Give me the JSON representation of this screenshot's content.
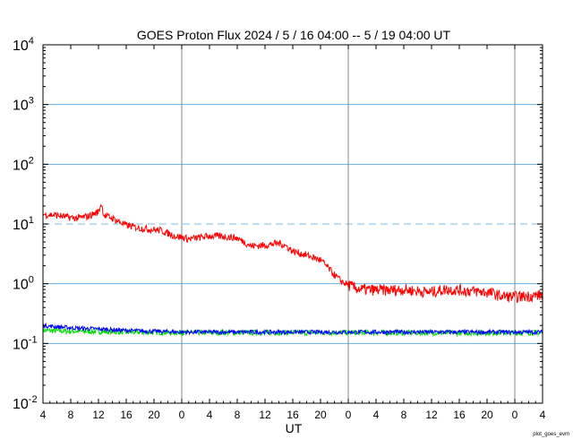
{
  "chart_data": {
    "type": "line",
    "title": "GOES Proton Flux   2024  /  5  / 16   04:00  --   5  / 19   04:00    UT",
    "xlabel": "UT",
    "credit": "plot_goes_evm",
    "y_scale": "log",
    "ylim": [
      0.01,
      10000
    ],
    "y_ticks": [
      {
        "base": "10",
        "exp": "-2"
      },
      {
        "base": "10",
        "exp": "-1"
      },
      {
        "base": "10",
        "exp": "0"
      },
      {
        "base": "10",
        "exp": "1"
      },
      {
        "base": "10",
        "exp": "2"
      },
      {
        "base": "10",
        "exp": "3"
      },
      {
        "base": "10",
        "exp": "4"
      }
    ],
    "x_range_hours": [
      0,
      72
    ],
    "x_tick_labels": [
      "4",
      "8",
      "12",
      "16",
      "20",
      "0",
      "4",
      "8",
      "12",
      "16",
      "20",
      "0",
      "4",
      "8",
      "12",
      "16",
      "20",
      "0",
      "4"
    ],
    "day_boundaries_hours": [
      20,
      44,
      68
    ],
    "grid_levels": [
      0.1,
      1,
      100,
      1000
    ],
    "threshold": 10,
    "colors": {
      "grid": "#6aaee0",
      "threshold": "#a8d4f0",
      "day_line": "#888888",
      "series_red": "#ff0000",
      "series_blue": "#0000ff",
      "series_green": "#00e000"
    },
    "series": [
      {
        "color": "#ff0000",
        "points": [
          [
            0,
            14.5
          ],
          [
            2,
            14.0
          ],
          [
            3.5,
            13.0
          ],
          [
            5,
            12.5
          ],
          [
            6.5,
            13.5
          ],
          [
            8,
            16
          ],
          [
            8.4,
            22
          ],
          [
            8.8,
            14
          ],
          [
            10,
            12.5
          ],
          [
            12,
            9.5
          ],
          [
            14,
            8.5
          ],
          [
            16,
            8.0
          ],
          [
            17,
            7.8
          ],
          [
            18,
            7.0
          ],
          [
            19,
            6.3
          ],
          [
            20,
            6.0
          ],
          [
            21,
            5.6
          ],
          [
            22,
            5.8
          ],
          [
            24,
            6.3
          ],
          [
            26,
            6.2
          ],
          [
            28,
            5.8
          ],
          [
            29,
            5.0
          ],
          [
            30,
            4.3
          ],
          [
            32,
            4.4
          ],
          [
            34,
            4.8
          ],
          [
            35,
            4.3
          ],
          [
            36,
            3.5
          ],
          [
            38,
            3.0
          ],
          [
            40,
            2.5
          ],
          [
            41,
            1.9
          ],
          [
            42,
            1.4
          ],
          [
            43,
            1.1
          ],
          [
            44,
            0.95
          ],
          [
            45,
            0.85
          ],
          [
            46,
            0.8
          ],
          [
            48,
            0.78
          ],
          [
            50,
            0.78
          ],
          [
            52,
            0.8
          ],
          [
            54,
            0.75
          ],
          [
            56,
            0.72
          ],
          [
            58,
            0.8
          ],
          [
            60,
            0.78
          ],
          [
            62,
            0.75
          ],
          [
            64,
            0.72
          ],
          [
            65,
            0.68
          ],
          [
            66,
            0.62
          ],
          [
            68,
            0.6
          ],
          [
            70,
            0.62
          ],
          [
            72,
            0.65
          ]
        ]
      },
      {
        "color": "#0000ff",
        "points": [
          [
            0,
            0.2
          ],
          [
            2,
            0.19
          ],
          [
            5,
            0.18
          ],
          [
            8,
            0.175
          ],
          [
            12,
            0.165
          ],
          [
            16,
            0.16
          ],
          [
            20,
            0.155
          ],
          [
            24,
            0.155
          ],
          [
            30,
            0.155
          ],
          [
            40,
            0.155
          ],
          [
            50,
            0.155
          ],
          [
            60,
            0.155
          ],
          [
            72,
            0.155
          ]
        ]
      },
      {
        "color": "#00e000",
        "points": [
          [
            0,
            0.165
          ],
          [
            4,
            0.16
          ],
          [
            8,
            0.158
          ],
          [
            12,
            0.155
          ],
          [
            20,
            0.152
          ],
          [
            30,
            0.152
          ],
          [
            40,
            0.152
          ],
          [
            50,
            0.152
          ],
          [
            60,
            0.15
          ],
          [
            72,
            0.152
          ]
        ]
      }
    ]
  }
}
